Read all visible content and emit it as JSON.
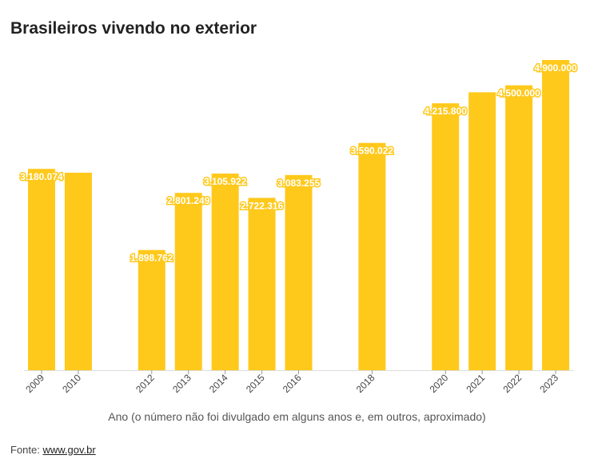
{
  "chart_data": {
    "type": "bar",
    "title": "Brasileiros vivendo no exterior",
    "xlabel": "Ano (o número não foi divulgado em alguns anos e, em outros, aproximado)",
    "ylabel": "",
    "ylim": [
      0,
      4900000
    ],
    "grid": false,
    "bar_color": "#FFC91C",
    "categories": [
      "2009",
      "2010",
      "2012",
      "2013",
      "2014",
      "2015",
      "2016",
      "2018",
      "2020",
      "2021",
      "2022",
      "2023"
    ],
    "values": [
      3180074,
      3120000,
      1898762,
      2801249,
      3105922,
      2722316,
      3083255,
      3590022,
      4215800,
      4390000,
      4500000,
      4900000
    ],
    "data_labels": [
      "3.180.074",
      "",
      "1.898.762",
      "2.801.249",
      "3.105.922",
      "2.722.316",
      "3.083.255",
      "3.590.022",
      "4.215.800",
      "",
      "4.500.000",
      "4.900.000"
    ]
  },
  "footer": {
    "source_prefix": "Fonte: ",
    "source_link": "www.gov.br"
  }
}
